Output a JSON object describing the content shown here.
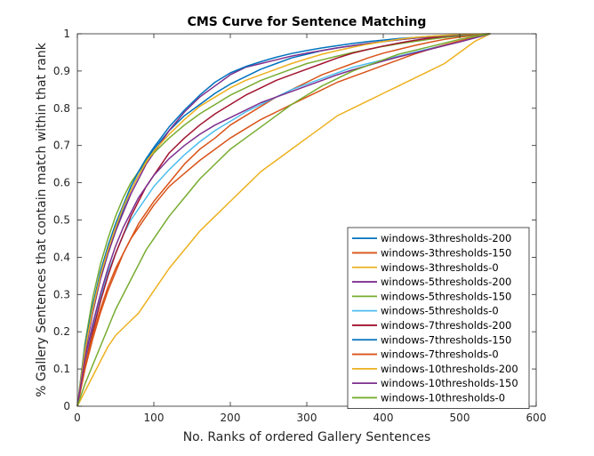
{
  "chart_data": {
    "type": "line",
    "title": "CMS Curve for Sentence Matching",
    "xlabel": "No. Ranks of ordered Gallery Sentences",
    "ylabel": "% Gallery Sentences that contain match within that rank",
    "xlim": [
      0,
      600
    ],
    "ylim": [
      0,
      1
    ],
    "xticks": [
      "0",
      "100",
      "200",
      "300",
      "400",
      "500",
      "600"
    ],
    "yticks": [
      "0",
      "0.1",
      "0.2",
      "0.3",
      "0.4",
      "0.5",
      "0.6",
      "0.7",
      "0.8",
      "0.9",
      "1"
    ],
    "grid": false,
    "legend_position": "bottom-right",
    "series": [
      {
        "name": "windows-3thresholds-200",
        "color": "#0072BD",
        "x": [
          0,
          10,
          20,
          30,
          40,
          50,
          60,
          70,
          80,
          90,
          100,
          120,
          140,
          160,
          180,
          200,
          220,
          240,
          260,
          280,
          300,
          320,
          340,
          360,
          380,
          400,
          420,
          440,
          460,
          480,
          500,
          520,
          540
        ],
        "y": [
          0,
          0.15,
          0.26,
          0.34,
          0.41,
          0.47,
          0.53,
          0.58,
          0.62,
          0.66,
          0.69,
          0.74,
          0.78,
          0.81,
          0.84,
          0.865,
          0.885,
          0.905,
          0.92,
          0.935,
          0.945,
          0.955,
          0.962,
          0.968,
          0.974,
          0.979,
          0.984,
          0.988,
          0.991,
          0.994,
          0.996,
          0.998,
          1
        ]
      },
      {
        "name": "windows-3thresholds-150",
        "color": "#D95319",
        "x": [
          0,
          10,
          20,
          30,
          40,
          50,
          60,
          70,
          80,
          90,
          100,
          120,
          140,
          160,
          180,
          200,
          220,
          240,
          260,
          280,
          300,
          320,
          340,
          360,
          380,
          400,
          420,
          440,
          460,
          480,
          500,
          520,
          540
        ],
        "y": [
          0,
          0.1,
          0.18,
          0.25,
          0.31,
          0.36,
          0.41,
          0.45,
          0.49,
          0.52,
          0.55,
          0.6,
          0.65,
          0.69,
          0.72,
          0.755,
          0.78,
          0.805,
          0.83,
          0.85,
          0.87,
          0.89,
          0.905,
          0.92,
          0.935,
          0.948,
          0.958,
          0.968,
          0.977,
          0.985,
          0.991,
          0.996,
          1
        ]
      },
      {
        "name": "windows-3thresholds-0",
        "color": "#EDB120",
        "x": [
          0,
          10,
          20,
          30,
          40,
          50,
          60,
          70,
          80,
          90,
          100,
          120,
          140,
          160,
          180,
          200,
          220,
          240,
          260,
          280,
          300,
          320,
          340,
          360,
          380,
          400,
          420,
          440,
          460,
          480,
          500,
          520,
          540
        ],
        "y": [
          0,
          0.04,
          0.08,
          0.12,
          0.16,
          0.19,
          0.21,
          0.23,
          0.25,
          0.28,
          0.31,
          0.37,
          0.42,
          0.47,
          0.51,
          0.55,
          0.59,
          0.63,
          0.66,
          0.69,
          0.72,
          0.75,
          0.78,
          0.8,
          0.82,
          0.84,
          0.86,
          0.88,
          0.9,
          0.92,
          0.95,
          0.98,
          1
        ]
      },
      {
        "name": "windows-5thresholds-200",
        "color": "#7E2F8E",
        "x": [
          0,
          10,
          20,
          30,
          40,
          50,
          60,
          70,
          80,
          90,
          100,
          120,
          140,
          160,
          180,
          200,
          220,
          240,
          260,
          280,
          300,
          320,
          340,
          360,
          380,
          400,
          420,
          440,
          460,
          480,
          500,
          520,
          540
        ],
        "y": [
          0,
          0.14,
          0.25,
          0.34,
          0.41,
          0.47,
          0.52,
          0.57,
          0.61,
          0.65,
          0.68,
          0.74,
          0.79,
          0.83,
          0.86,
          0.89,
          0.91,
          0.92,
          0.93,
          0.94,
          0.948,
          0.955,
          0.962,
          0.968,
          0.974,
          0.979,
          0.984,
          0.988,
          0.991,
          0.994,
          0.996,
          0.998,
          1
        ]
      },
      {
        "name": "windows-5thresholds-150",
        "color": "#77AC30",
        "x": [
          0,
          10,
          20,
          30,
          40,
          50,
          60,
          70,
          80,
          90,
          100,
          120,
          140,
          160,
          180,
          200,
          220,
          240,
          260,
          280,
          300,
          320,
          340,
          360,
          380,
          400,
          420,
          440,
          460,
          480,
          500,
          520,
          540
        ],
        "y": [
          0,
          0.17,
          0.29,
          0.38,
          0.45,
          0.51,
          0.56,
          0.6,
          0.63,
          0.66,
          0.68,
          0.72,
          0.755,
          0.785,
          0.81,
          0.835,
          0.855,
          0.875,
          0.89,
          0.905,
          0.92,
          0.93,
          0.94,
          0.95,
          0.958,
          0.966,
          0.973,
          0.979,
          0.985,
          0.99,
          0.994,
          0.997,
          1
        ]
      },
      {
        "name": "windows-5thresholds-0",
        "color": "#4DBEEE",
        "x": [
          0,
          10,
          20,
          30,
          40,
          50,
          60,
          70,
          80,
          90,
          100,
          120,
          140,
          160,
          180,
          200,
          220,
          240,
          260,
          280,
          300,
          320,
          340,
          360,
          380,
          400,
          420,
          440,
          460,
          480,
          500,
          520,
          540
        ],
        "y": [
          0,
          0.12,
          0.21,
          0.29,
          0.36,
          0.41,
          0.46,
          0.5,
          0.53,
          0.56,
          0.59,
          0.635,
          0.675,
          0.71,
          0.74,
          0.765,
          0.79,
          0.81,
          0.83,
          0.85,
          0.865,
          0.88,
          0.895,
          0.91,
          0.92,
          0.93,
          0.94,
          0.95,
          0.96,
          0.97,
          0.98,
          0.99,
          1
        ]
      },
      {
        "name": "windows-7thresholds-200",
        "color": "#A2142F",
        "x": [
          0,
          10,
          20,
          30,
          40,
          50,
          60,
          70,
          80,
          90,
          100,
          120,
          140,
          160,
          180,
          200,
          220,
          240,
          260,
          280,
          300,
          320,
          340,
          360,
          380,
          400,
          420,
          440,
          460,
          480,
          500,
          520,
          540
        ],
        "y": [
          0,
          0.11,
          0.2,
          0.28,
          0.35,
          0.41,
          0.46,
          0.51,
          0.55,
          0.59,
          0.62,
          0.68,
          0.72,
          0.755,
          0.785,
          0.81,
          0.835,
          0.855,
          0.875,
          0.89,
          0.905,
          0.92,
          0.935,
          0.948,
          0.958,
          0.967,
          0.975,
          0.982,
          0.988,
          0.993,
          0.996,
          0.998,
          1
        ]
      },
      {
        "name": "windows-7thresholds-150",
        "color": "#0072BD",
        "x": [
          0,
          10,
          20,
          30,
          40,
          50,
          60,
          70,
          80,
          90,
          100,
          120,
          140,
          160,
          180,
          200,
          220,
          240,
          260,
          280,
          300,
          320,
          340,
          360,
          380,
          400,
          420,
          440,
          460,
          480,
          500,
          520,
          540
        ],
        "y": [
          0,
          0.16,
          0.27,
          0.36,
          0.43,
          0.49,
          0.54,
          0.59,
          0.63,
          0.665,
          0.695,
          0.75,
          0.795,
          0.835,
          0.87,
          0.895,
          0.912,
          0.925,
          0.937,
          0.947,
          0.955,
          0.962,
          0.968,
          0.974,
          0.979,
          0.983,
          0.987,
          0.99,
          0.993,
          0.995,
          0.997,
          0.999,
          1
        ]
      },
      {
        "name": "windows-7thresholds-0",
        "color": "#D95319",
        "x": [
          0,
          10,
          20,
          30,
          40,
          50,
          60,
          70,
          80,
          90,
          100,
          120,
          140,
          160,
          180,
          200,
          220,
          240,
          260,
          280,
          300,
          320,
          340,
          360,
          380,
          400,
          420,
          440,
          460,
          480,
          500,
          520,
          540
        ],
        "y": [
          0,
          0.11,
          0.19,
          0.26,
          0.32,
          0.37,
          0.41,
          0.45,
          0.48,
          0.51,
          0.54,
          0.59,
          0.625,
          0.66,
          0.69,
          0.72,
          0.745,
          0.77,
          0.79,
          0.81,
          0.83,
          0.85,
          0.87,
          0.885,
          0.9,
          0.915,
          0.93,
          0.945,
          0.958,
          0.97,
          0.981,
          0.991,
          1
        ]
      },
      {
        "name": "windows-10thresholds-200",
        "color": "#EDB120",
        "x": [
          0,
          10,
          20,
          30,
          40,
          50,
          60,
          70,
          80,
          90,
          100,
          120,
          140,
          160,
          180,
          200,
          220,
          240,
          260,
          280,
          300,
          320,
          340,
          360,
          380,
          400,
          420,
          440,
          460,
          480,
          500,
          520,
          540
        ],
        "y": [
          0,
          0.15,
          0.26,
          0.35,
          0.42,
          0.48,
          0.535,
          0.58,
          0.62,
          0.655,
          0.685,
          0.73,
          0.77,
          0.805,
          0.83,
          0.855,
          0.875,
          0.89,
          0.905,
          0.92,
          0.933,
          0.945,
          0.955,
          0.964,
          0.972,
          0.979,
          0.985,
          0.99,
          0.993,
          0.996,
          0.998,
          0.999,
          1
        ]
      },
      {
        "name": "windows-10thresholds-150",
        "color": "#7E2F8E",
        "x": [
          0,
          10,
          20,
          30,
          40,
          50,
          60,
          70,
          80,
          90,
          100,
          120,
          140,
          160,
          180,
          200,
          220,
          240,
          260,
          280,
          300,
          320,
          340,
          360,
          380,
          400,
          420,
          440,
          460,
          480,
          500,
          520,
          540
        ],
        "y": [
          0,
          0.13,
          0.22,
          0.3,
          0.37,
          0.43,
          0.48,
          0.52,
          0.56,
          0.59,
          0.62,
          0.665,
          0.7,
          0.73,
          0.755,
          0.775,
          0.795,
          0.815,
          0.83,
          0.845,
          0.86,
          0.875,
          0.89,
          0.903,
          0.915,
          0.927,
          0.938,
          0.948,
          0.958,
          0.968,
          0.978,
          0.989,
          1
        ]
      },
      {
        "name": "windows-10thresholds-0",
        "color": "#77AC30",
        "x": [
          0,
          10,
          20,
          30,
          40,
          50,
          60,
          70,
          80,
          90,
          100,
          120,
          140,
          160,
          180,
          200,
          220,
          240,
          260,
          280,
          300,
          320,
          340,
          360,
          380,
          400,
          420,
          440,
          460,
          480,
          500,
          520,
          540
        ],
        "y": [
          0,
          0.06,
          0.11,
          0.16,
          0.21,
          0.26,
          0.3,
          0.34,
          0.38,
          0.42,
          0.45,
          0.51,
          0.56,
          0.61,
          0.65,
          0.69,
          0.72,
          0.75,
          0.78,
          0.81,
          0.835,
          0.86,
          0.88,
          0.9,
          0.915,
          0.93,
          0.945,
          0.955,
          0.965,
          0.975,
          0.985,
          0.993,
          1
        ]
      }
    ]
  }
}
